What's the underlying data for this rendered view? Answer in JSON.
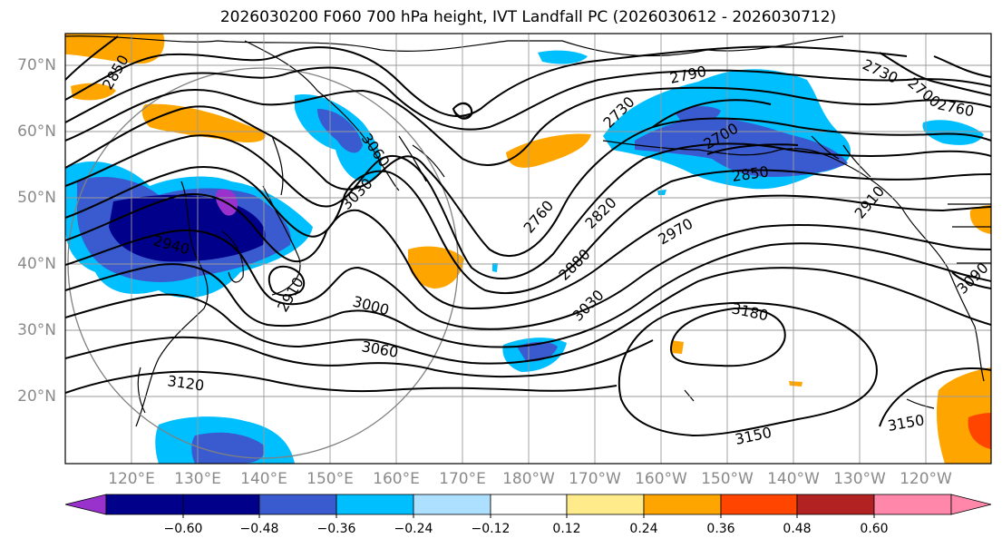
{
  "title": "2026030200 F060 700 hPa height, IVT Landfall PC (2026030612 - 2026030712)",
  "lat_labels": [
    "70°N",
    "60°N",
    "50°N",
    "40°N",
    "30°N",
    "20°N"
  ],
  "lon_labels": [
    "120°E",
    "130°E",
    "140°E",
    "150°E",
    "160°E",
    "170°E",
    "180°W",
    "170°W",
    "160°W",
    "150°W",
    "140°W",
    "130°W",
    "120°W"
  ],
  "contour_labels": [
    "2850",
    "2790",
    "2730",
    "2700",
    "2760",
    "2730",
    "2700",
    "3060",
    "3030",
    "2850",
    "2940",
    "2760",
    "2820",
    "2970",
    "2910",
    "2880",
    "3030",
    "3000",
    "3060",
    "3120",
    "3180",
    "3150",
    "3150",
    "3090",
    "2910"
  ],
  "colorbar": {
    "ticks": [
      "−0.60",
      "−0.48",
      "−0.36",
      "−0.24",
      "−0.12",
      "0.12",
      "0.24",
      "0.36",
      "0.48",
      "0.60"
    ],
    "colors": [
      "#9932CC",
      "#00008B",
      "#3A5BCF",
      "#00BFFF",
      "#ADDFFF",
      "#FFFFFF",
      "#FFEB8A",
      "#FFA500",
      "#FF4500",
      "#B22222",
      "#FF88AA"
    ]
  },
  "colors": {
    "strong_negative": "#3A5BCF",
    "very_strong_negative": "#00008B",
    "extreme_negative": "#9932CC",
    "moderate_negative": "#00BFFF",
    "moderate_positive": "#FFA500",
    "strong_positive": "#FF4500",
    "contour": "#000000",
    "grid": "#9a9a9a"
  }
}
